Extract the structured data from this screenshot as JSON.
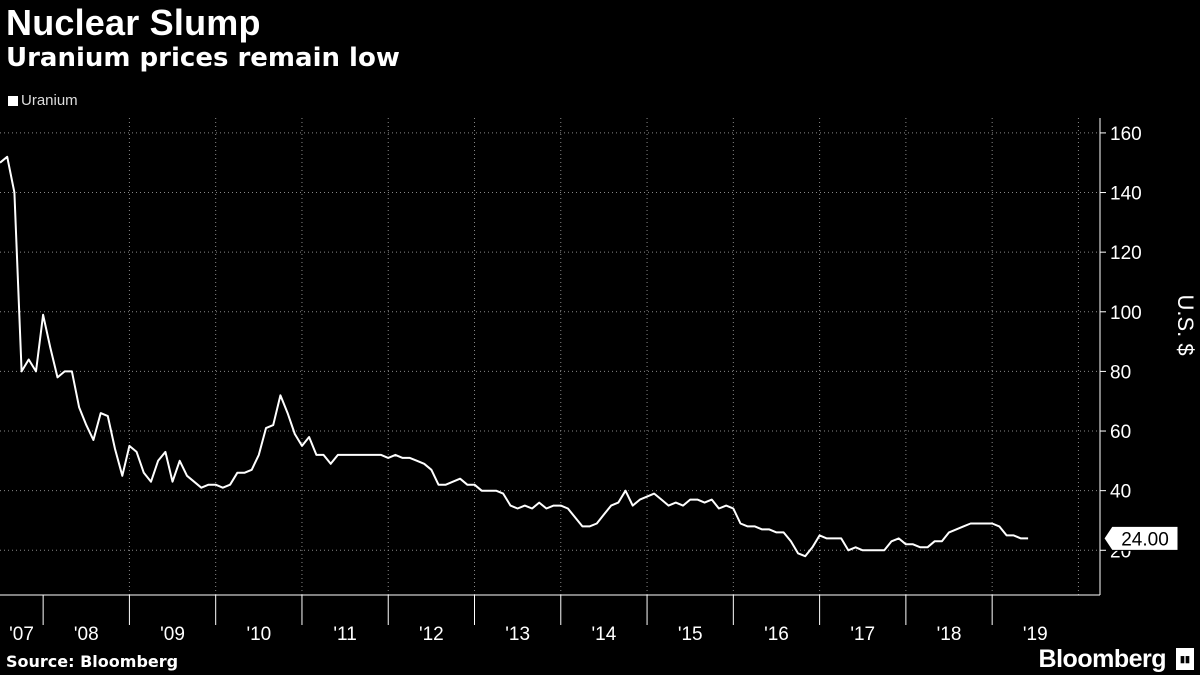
{
  "header": {
    "title": "Nuclear Slump",
    "subtitle": "Uranium prices remain low"
  },
  "footer": {
    "source": "Source: Bloomberg",
    "brand": "Bloomberg"
  },
  "colors": {
    "background": "#000000",
    "line": "#ffffff",
    "grid": "#888888",
    "text": "#ffffff"
  },
  "chart_data": {
    "type": "line",
    "title": "Nuclear Slump",
    "subtitle": "Uranium prices remain low",
    "ylabel": "U.S. $",
    "ylim": [
      5,
      165
    ],
    "y_ticks": [
      20,
      40,
      60,
      80,
      100,
      120,
      140,
      160
    ],
    "y_axis_position": "right",
    "x_range": [
      2007.0,
      2019.75
    ],
    "x_ticks": [
      {
        "label": "'07",
        "pos": 2007.25
      },
      {
        "label": "'08",
        "pos": 2008.0
      },
      {
        "label": "'09",
        "pos": 2009.0
      },
      {
        "label": "'10",
        "pos": 2010.0
      },
      {
        "label": "'11",
        "pos": 2011.0
      },
      {
        "label": "'12",
        "pos": 2012.0
      },
      {
        "label": "'13",
        "pos": 2013.0
      },
      {
        "label": "'14",
        "pos": 2014.0
      },
      {
        "label": "'15",
        "pos": 2015.0
      },
      {
        "label": "'16",
        "pos": 2016.0
      },
      {
        "label": "'17",
        "pos": 2017.0
      },
      {
        "label": "'18",
        "pos": 2018.0
      },
      {
        "label": "'19",
        "pos": 2019.0
      }
    ],
    "grid": true,
    "legend": "top-left",
    "series": [
      {
        "name": "Uranium",
        "last_value_label": "24.00",
        "points": [
          [
            2007.0,
            150
          ],
          [
            2007.083,
            152
          ],
          [
            2007.167,
            140
          ],
          [
            2007.25,
            80
          ],
          [
            2007.333,
            84
          ],
          [
            2007.417,
            80
          ],
          [
            2007.5,
            99
          ],
          [
            2007.583,
            88
          ],
          [
            2007.667,
            78
          ],
          [
            2007.75,
            80
          ],
          [
            2007.833,
            80
          ],
          [
            2007.917,
            68
          ],
          [
            2008.0,
            62
          ],
          [
            2008.083,
            57
          ],
          [
            2008.167,
            66
          ],
          [
            2008.25,
            65
          ],
          [
            2008.333,
            54
          ],
          [
            2008.417,
            45
          ],
          [
            2008.5,
            55
          ],
          [
            2008.583,
            53
          ],
          [
            2008.667,
            46
          ],
          [
            2008.75,
            43
          ],
          [
            2008.833,
            50
          ],
          [
            2008.917,
            53
          ],
          [
            2009.0,
            43
          ],
          [
            2009.083,
            50
          ],
          [
            2009.167,
            45
          ],
          [
            2009.25,
            43
          ],
          [
            2009.333,
            41
          ],
          [
            2009.417,
            42
          ],
          [
            2009.5,
            42
          ],
          [
            2009.583,
            41
          ],
          [
            2009.667,
            42
          ],
          [
            2009.75,
            46
          ],
          [
            2009.833,
            46
          ],
          [
            2009.917,
            47
          ],
          [
            2010.0,
            52
          ],
          [
            2010.083,
            61
          ],
          [
            2010.167,
            62
          ],
          [
            2010.25,
            72
          ],
          [
            2010.333,
            66
          ],
          [
            2010.417,
            59
          ],
          [
            2010.5,
            55
          ],
          [
            2010.583,
            58
          ],
          [
            2010.667,
            52
          ],
          [
            2010.75,
            52
          ],
          [
            2010.833,
            49
          ],
          [
            2010.917,
            52
          ],
          [
            2011.0,
            52
          ],
          [
            2011.083,
            52
          ],
          [
            2011.167,
            52
          ],
          [
            2011.25,
            52
          ],
          [
            2011.333,
            52
          ],
          [
            2011.417,
            52
          ],
          [
            2011.5,
            51
          ],
          [
            2011.583,
            52
          ],
          [
            2011.667,
            51
          ],
          [
            2011.75,
            51
          ],
          [
            2011.833,
            50
          ],
          [
            2011.917,
            49
          ],
          [
            2012.0,
            47
          ],
          [
            2012.083,
            42
          ],
          [
            2012.167,
            42
          ],
          [
            2012.25,
            43
          ],
          [
            2012.333,
            44
          ],
          [
            2012.417,
            42
          ],
          [
            2012.5,
            42
          ],
          [
            2012.583,
            40
          ],
          [
            2012.667,
            40
          ],
          [
            2012.75,
            40
          ],
          [
            2012.833,
            39
          ],
          [
            2012.917,
            35
          ],
          [
            2013.0,
            34
          ],
          [
            2013.083,
            35
          ],
          [
            2013.167,
            34
          ],
          [
            2013.25,
            36
          ],
          [
            2013.333,
            34
          ],
          [
            2013.417,
            35
          ],
          [
            2013.5,
            35
          ],
          [
            2013.583,
            34
          ],
          [
            2013.667,
            31
          ],
          [
            2013.75,
            28
          ],
          [
            2013.833,
            28
          ],
          [
            2013.917,
            29
          ],
          [
            2014.0,
            32
          ],
          [
            2014.083,
            35
          ],
          [
            2014.167,
            36
          ],
          [
            2014.25,
            40
          ],
          [
            2014.333,
            35
          ],
          [
            2014.417,
            37
          ],
          [
            2014.5,
            38
          ],
          [
            2014.583,
            39
          ],
          [
            2014.667,
            37
          ],
          [
            2014.75,
            35
          ],
          [
            2014.833,
            36
          ],
          [
            2014.917,
            35
          ],
          [
            2015.0,
            37
          ],
          [
            2015.083,
            37
          ],
          [
            2015.167,
            36
          ],
          [
            2015.25,
            37
          ],
          [
            2015.333,
            34
          ],
          [
            2015.417,
            35
          ],
          [
            2015.5,
            34
          ],
          [
            2015.583,
            29
          ],
          [
            2015.667,
            28
          ],
          [
            2015.75,
            28
          ],
          [
            2015.833,
            27
          ],
          [
            2015.917,
            27
          ],
          [
            2016.0,
            26
          ],
          [
            2016.083,
            26
          ],
          [
            2016.167,
            23
          ],
          [
            2016.25,
            19
          ],
          [
            2016.333,
            18
          ],
          [
            2016.417,
            21
          ],
          [
            2016.5,
            25
          ],
          [
            2016.583,
            24
          ],
          [
            2016.667,
            24
          ],
          [
            2016.75,
            24
          ],
          [
            2016.833,
            20
          ],
          [
            2016.917,
            21
          ],
          [
            2017.0,
            20
          ],
          [
            2017.083,
            20
          ],
          [
            2017.167,
            20
          ],
          [
            2017.25,
            20
          ],
          [
            2017.333,
            23
          ],
          [
            2017.417,
            24
          ],
          [
            2017.5,
            22
          ],
          [
            2017.583,
            22
          ],
          [
            2017.667,
            21
          ],
          [
            2017.75,
            21
          ],
          [
            2017.833,
            23
          ],
          [
            2017.917,
            23
          ],
          [
            2018.0,
            26
          ],
          [
            2018.083,
            27
          ],
          [
            2018.167,
            28
          ],
          [
            2018.25,
            29
          ],
          [
            2018.333,
            29
          ],
          [
            2018.417,
            29
          ],
          [
            2018.5,
            29
          ],
          [
            2018.583,
            28
          ],
          [
            2018.667,
            25
          ],
          [
            2018.75,
            25
          ],
          [
            2018.833,
            24
          ],
          [
            2018.917,
            24
          ]
        ]
      }
    ]
  }
}
